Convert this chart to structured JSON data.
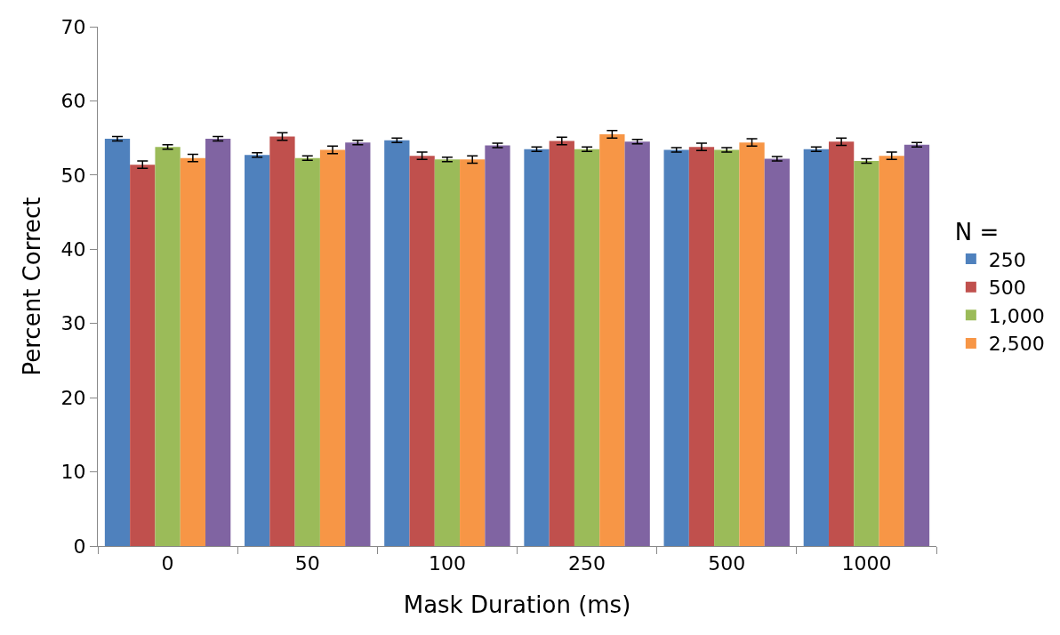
{
  "chart_data": {
    "type": "bar",
    "xlabel": "Mask Duration (ms)",
    "ylabel": "Percent Correct",
    "legend_title": "N =",
    "categories": [
      "0",
      "50",
      "100",
      "250",
      "500",
      "1000"
    ],
    "ylim": [
      0,
      70
    ],
    "yticks": [
      0,
      10,
      20,
      30,
      40,
      50,
      60,
      70
    ],
    "legend": "right",
    "series": [
      {
        "name": "250",
        "color": "#4f81bd",
        "values": [
          54.9,
          52.7,
          54.7,
          53.5,
          53.4,
          53.5
        ],
        "errors": [
          0.3,
          0.3,
          0.3,
          0.3,
          0.3,
          0.3
        ]
      },
      {
        "name": "500",
        "color": "#c0504d",
        "values": [
          51.4,
          55.2,
          52.6,
          54.6,
          53.8,
          54.5
        ],
        "errors": [
          0.5,
          0.5,
          0.5,
          0.5,
          0.5,
          0.5
        ]
      },
      {
        "name": "1,000",
        "color": "#9bbb59",
        "values": [
          53.8,
          52.3,
          52.1,
          53.5,
          53.4,
          51.9
        ],
        "errors": [
          0.3,
          0.3,
          0.3,
          0.3,
          0.3,
          0.3
        ]
      },
      {
        "name": "2,500",
        "color": "#f79646",
        "values": [
          52.3,
          53.4,
          52.1,
          55.5,
          54.4,
          52.6
        ],
        "errors": [
          0.5,
          0.5,
          0.5,
          0.5,
          0.5,
          0.5
        ]
      },
      {
        "color": "#8064a2",
        "values": [
          54.9,
          54.4,
          54.0,
          54.5,
          52.2,
          54.1
        ],
        "errors": [
          0.3,
          0.3,
          0.3,
          0.3,
          0.3,
          0.3
        ]
      }
    ]
  }
}
